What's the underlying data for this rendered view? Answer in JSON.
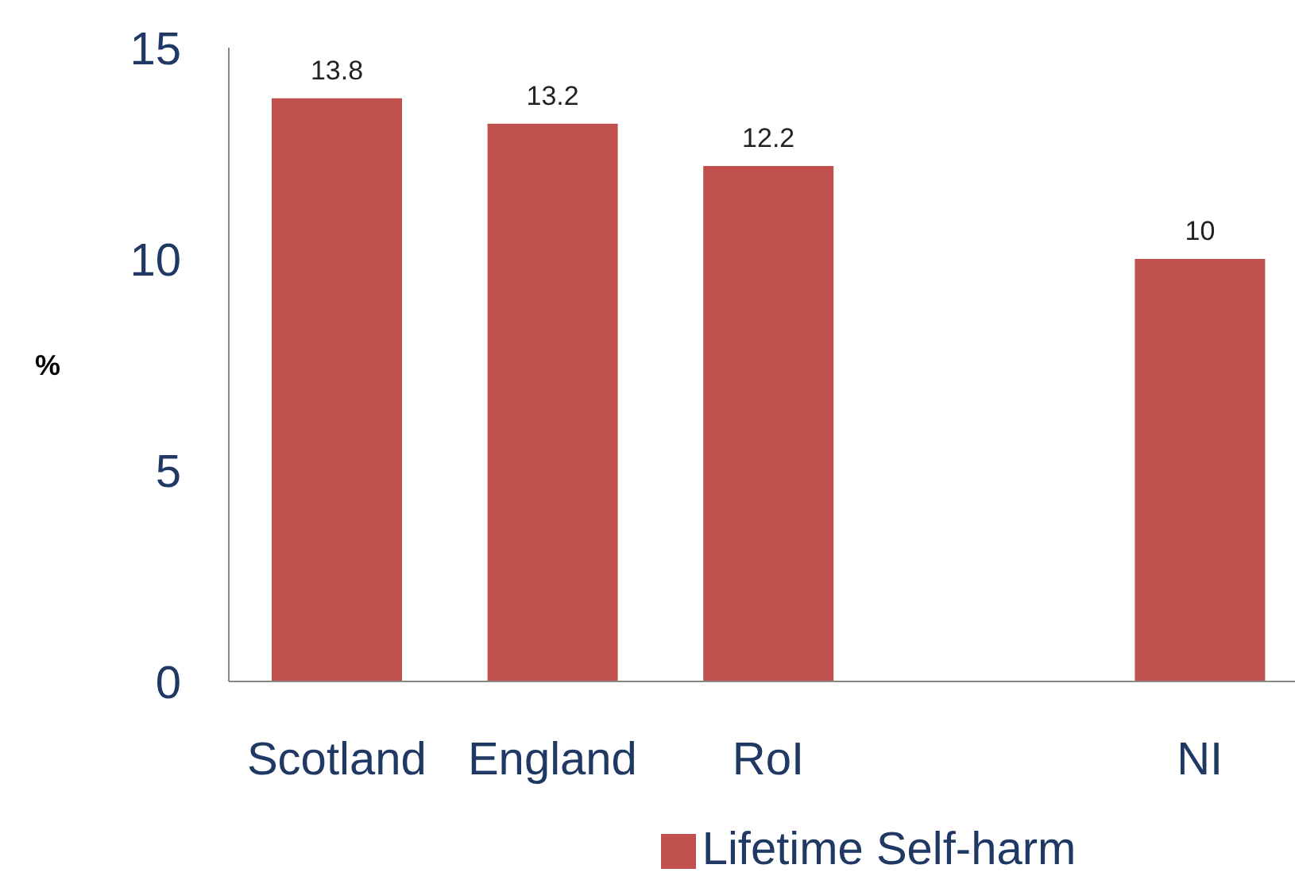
{
  "chart_data": {
    "type": "bar",
    "ylabel": "%",
    "categories": [
      "Scotland",
      "England",
      "RoI",
      null,
      "NI"
    ],
    "series": [
      {
        "name": "Lifetime Self-harm",
        "color": "#c0504d",
        "values": [
          13.8,
          13.2,
          12.2,
          null,
          10
        ]
      }
    ],
    "ylim": [
      0,
      15
    ],
    "yticks": [
      0,
      5,
      10,
      15
    ],
    "data_labels": true,
    "grid": false,
    "legend": "bottom"
  }
}
